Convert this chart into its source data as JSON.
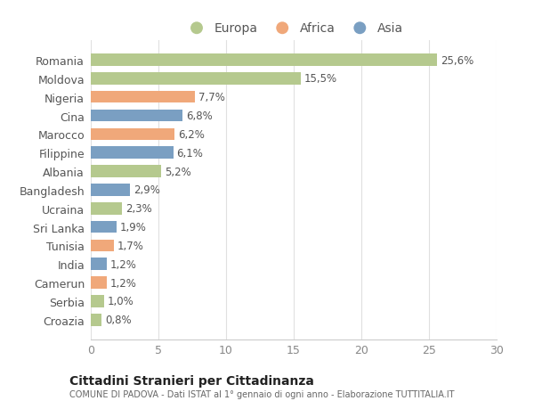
{
  "categories": [
    "Romania",
    "Moldova",
    "Nigeria",
    "Cina",
    "Marocco",
    "Filippine",
    "Albania",
    "Bangladesh",
    "Ucraina",
    "Sri Lanka",
    "Tunisia",
    "India",
    "Camerun",
    "Serbia",
    "Croazia"
  ],
  "values": [
    25.6,
    15.5,
    7.7,
    6.8,
    6.2,
    6.1,
    5.2,
    2.9,
    2.3,
    1.9,
    1.7,
    1.2,
    1.2,
    1.0,
    0.8
  ],
  "labels": [
    "25,6%",
    "15,5%",
    "7,7%",
    "6,8%",
    "6,2%",
    "6,1%",
    "5,2%",
    "2,9%",
    "2,3%",
    "1,9%",
    "1,7%",
    "1,2%",
    "1,2%",
    "1,0%",
    "0,8%"
  ],
  "colors": [
    "#b5c98e",
    "#b5c98e",
    "#f0a87a",
    "#7a9fc2",
    "#f0a87a",
    "#7a9fc2",
    "#b5c98e",
    "#7a9fc2",
    "#b5c98e",
    "#7a9fc2",
    "#f0a87a",
    "#7a9fc2",
    "#f0a87a",
    "#b5c98e",
    "#b5c98e"
  ],
  "legend_labels": [
    "Europa",
    "Africa",
    "Asia"
  ],
  "legend_colors": [
    "#b5c98e",
    "#f0a87a",
    "#7a9fc2"
  ],
  "title": "Cittadini Stranieri per Cittadinanza",
  "subtitle": "COMUNE DI PADOVA - Dati ISTAT al 1° gennaio di ogni anno - Elaborazione TUTTITALIA.IT",
  "xlim": [
    0,
    30
  ],
  "xticks": [
    0,
    5,
    10,
    15,
    20,
    25,
    30
  ],
  "background_color": "#ffffff",
  "bar_height": 0.65,
  "label_fontsize": 8.5,
  "ytick_fontsize": 9,
  "xtick_fontsize": 9
}
